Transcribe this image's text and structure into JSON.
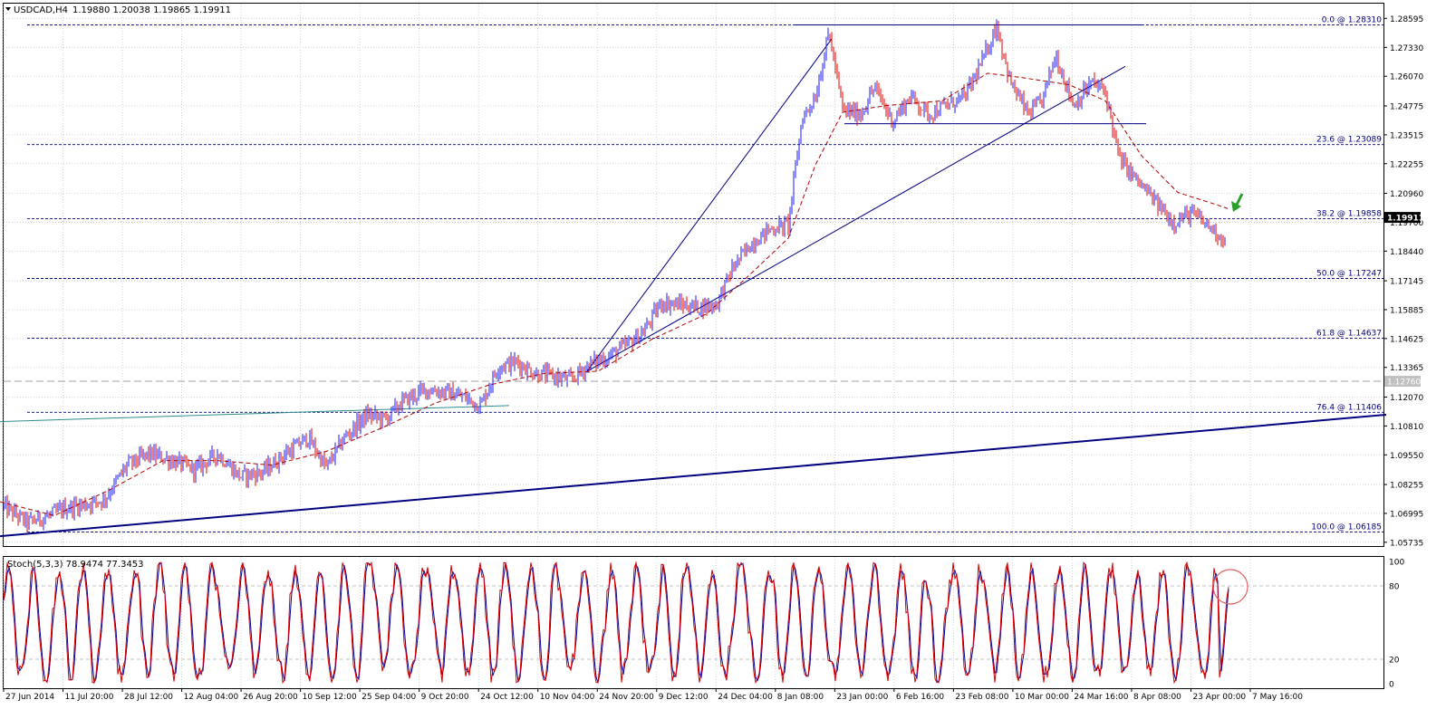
{
  "window": {
    "symbol_caption": "USDCAD,H4",
    "ohlc_caption": "1.19880 1.20038 1.19865 1.19911"
  },
  "colors": {
    "background": "#ffffff",
    "grid": "#c0cccc",
    "bull_candle": "#1a1aff",
    "bear_candle": "#dd0000",
    "moving_average": "#b00000",
    "trendlines": "#000080",
    "fib_lines": "#000080",
    "channel_line": "#2e8b8b",
    "stoch_main": "#dd0000",
    "stoch_signal": "#0000aa",
    "current_price_tag_bg": "#000000",
    "current_price_tag_fg": "#ffffff",
    "arrow": "#2e9e2e",
    "circle": "#e86060"
  },
  "icons": {
    "menu": "triangle-down-icon",
    "arrow": "green-arrow-icon",
    "circle": "highlight-circle-icon"
  },
  "chart_data": [
    {
      "type": "candlestick",
      "title": "USDCAD,H4",
      "ohlc_last": {
        "open": 1.1988,
        "high": 1.20038,
        "low": 1.19865,
        "close": 1.19911
      },
      "ylim": [
        1.0557,
        1.2924
      ],
      "y_ticks": [
        "1.28595",
        "1.27330",
        "1.26070",
        "1.24775",
        "1.23515",
        "1.22255",
        "1.20960",
        "1.19700",
        "1.18440",
        "1.17145",
        "1.15885",
        "1.14625",
        "1.13365",
        "1.12070",
        "1.10810",
        "1.09550",
        "1.08255",
        "1.06995",
        "1.05735"
      ],
      "x_ticks": [
        "27 Jun 2014",
        "11 Jul 20:00",
        "28 Jul 12:00",
        "12 Aug 04:00",
        "26 Aug 20:00",
        "10 Sep 12:00",
        "25 Sep 04:00",
        "9 Oct 20:00",
        "24 Oct 12:00",
        "10 Nov 04:00",
        "24 Nov 20:00",
        "9 Dec 12:00",
        "24 Dec 04:00",
        "8 Jan 08:00",
        "23 Jan 00:00",
        "6 Feb 16:00",
        "23 Feb 08:00",
        "10 Mar 00:00",
        "24 Mar 16:00",
        "8 Apr 08:00",
        "23 Apr 00:00",
        "7 May 16:00"
      ],
      "current_price": "1.19911",
      "horizontal_level": "1.12760",
      "fibonacci_levels": [
        {
          "label": "0.0 @ 1.28310",
          "value": 1.2831
        },
        {
          "label": "23.6 @ 1.23089",
          "value": 1.23089
        },
        {
          "label": "38.2 @ 1.19858",
          "value": 1.19858
        },
        {
          "label": "50.0 @ 1.17247",
          "value": 1.17247
        },
        {
          "label": "61.8 @ 1.14637",
          "value": 1.14637
        },
        {
          "label": "76.4 @ 1.11406",
          "value": 1.11406
        },
        {
          "label": "100.0 @ 1.06185",
          "value": 1.06185
        }
      ],
      "price_path": [
        [
          0,
          1.074
        ],
        [
          30,
          1.066
        ],
        [
          55,
          1.069
        ],
        [
          70,
          1.072
        ],
        [
          95,
          1.074
        ],
        [
          115,
          1.076
        ],
        [
          140,
          1.091
        ],
        [
          165,
          1.096
        ],
        [
          190,
          1.093
        ],
        [
          215,
          1.089
        ],
        [
          240,
          1.096
        ],
        [
          265,
          1.086
        ],
        [
          290,
          1.088
        ],
        [
          315,
          1.096
        ],
        [
          340,
          1.103
        ],
        [
          360,
          1.09
        ],
        [
          380,
          1.103
        ],
        [
          405,
          1.113
        ],
        [
          425,
          1.111
        ],
        [
          445,
          1.119
        ],
        [
          470,
          1.124
        ],
        [
          490,
          1.123
        ],
        [
          510,
          1.121
        ],
        [
          530,
          1.117
        ],
        [
          550,
          1.134
        ],
        [
          570,
          1.136
        ],
        [
          590,
          1.131
        ],
        [
          610,
          1.13
        ],
        [
          630,
          1.128
        ],
        [
          650,
          1.135
        ],
        [
          670,
          1.138
        ],
        [
          690,
          1.143
        ],
        [
          710,
          1.149
        ],
        [
          730,
          1.162
        ],
        [
          750,
          1.161
        ],
        [
          770,
          1.16
        ],
        [
          790,
          1.161
        ],
        [
          810,
          1.178
        ],
        [
          830,
          1.188
        ],
        [
          850,
          1.194
        ],
        [
          870,
          1.196
        ],
        [
          885,
          1.242
        ],
        [
          900,
          1.252
        ],
        [
          915,
          1.28
        ],
        [
          930,
          1.246
        ],
        [
          950,
          1.244
        ],
        [
          965,
          1.256
        ],
        [
          985,
          1.241
        ],
        [
          1005,
          1.252
        ],
        [
          1025,
          1.244
        ],
        [
          1045,
          1.248
        ],
        [
          1065,
          1.252
        ],
        [
          1085,
          1.268
        ],
        [
          1100,
          1.283
        ],
        [
          1115,
          1.258
        ],
        [
          1135,
          1.244
        ],
        [
          1150,
          1.25
        ],
        [
          1165,
          1.27
        ],
        [
          1185,
          1.248
        ],
        [
          1205,
          1.258
        ],
        [
          1220,
          1.254
        ],
        [
          1235,
          1.225
        ],
        [
          1255,
          1.215
        ],
        [
          1275,
          1.206
        ],
        [
          1295,
          1.197
        ],
        [
          1315,
          1.201
        ],
        [
          1335,
          1.195
        ],
        [
          1352,
          1.189
        ]
      ],
      "moving_average_path": [
        [
          0,
          1.075
        ],
        [
          60,
          1.069
        ],
        [
          120,
          1.08
        ],
        [
          180,
          1.093
        ],
        [
          240,
          1.093
        ],
        [
          300,
          1.091
        ],
        [
          360,
          1.097
        ],
        [
          420,
          1.107
        ],
        [
          480,
          1.118
        ],
        [
          540,
          1.126
        ],
        [
          600,
          1.131
        ],
        [
          660,
          1.132
        ],
        [
          720,
          1.146
        ],
        [
          780,
          1.157
        ],
        [
          830,
          1.175
        ],
        [
          870,
          1.19
        ],
        [
          900,
          1.222
        ],
        [
          930,
          1.245
        ],
        [
          980,
          1.248
        ],
        [
          1040,
          1.25
        ],
        [
          1090,
          1.262
        ],
        [
          1130,
          1.26
        ],
        [
          1180,
          1.257
        ],
        [
          1220,
          1.25
        ],
        [
          1260,
          1.226
        ],
        [
          1300,
          1.21
        ],
        [
          1340,
          1.205
        ],
        [
          1355,
          1.203
        ]
      ],
      "trendlines": [
        {
          "from": [
            648,
            1.132
          ],
          "to": [
            918,
            1.277
          ]
        },
        {
          "from": [
            648,
            1.132
          ],
          "to": [
            792,
            1.164
          ]
        },
        {
          "from": [
            792,
            1.164
          ],
          "to": [
            1242,
            1.265
          ]
        },
        {
          "from": [
            877,
            1.2831
          ],
          "to": [
            1262,
            1.2831
          ]
        },
        {
          "from": [
            932,
            1.24
          ],
          "to": [
            1265,
            1.24
          ]
        },
        {
          "from": [
            0,
            1.06
          ],
          "to": [
            1530,
            1.113
          ]
        },
        {
          "from": [
            0,
            1.11
          ],
          "to": [
            562,
            1.117
          ]
        }
      ]
    },
    {
      "type": "line",
      "title": "Stoch(5,3,3) 78.9474 77.3453",
      "series": [
        {
          "name": "main",
          "last": 78.9474
        },
        {
          "name": "signal",
          "last": 77.3453
        }
      ],
      "ylim": [
        0,
        100
      ],
      "y_ticks": [
        "100",
        "80",
        "20",
        "0"
      ]
    }
  ]
}
